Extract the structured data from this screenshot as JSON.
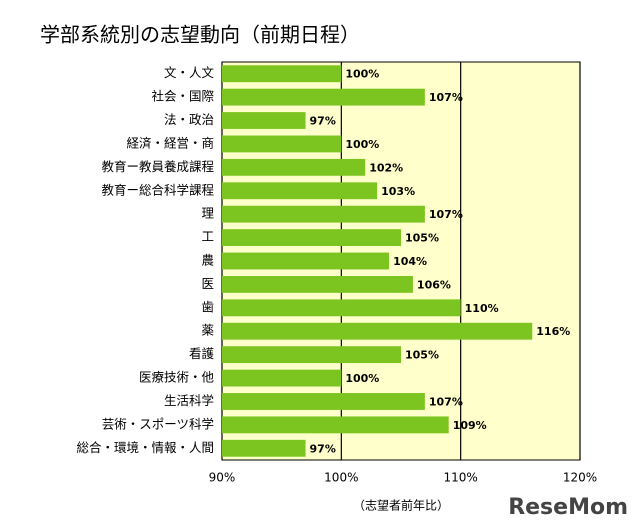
{
  "chart_data": {
    "type": "bar",
    "orientation": "horizontal",
    "title": "学部系統別の志望動向（前期日程）",
    "x_label": "（志望者前年比）",
    "watermark": "ReseMom",
    "categories": [
      "文・人文",
      "社会・国際",
      "法・政治",
      "経済・経営・商",
      "教育ー教員養成課程",
      "教育ー総合科学課程",
      "理",
      "工",
      "農",
      "医",
      "歯",
      "薬",
      "看護",
      "医療技術・他",
      "生活科学",
      "芸術・スポーツ科学",
      "総合・環境・情報・人間"
    ],
    "values": [
      100,
      107,
      97,
      100,
      102,
      103,
      107,
      105,
      104,
      106,
      110,
      116,
      105,
      100,
      107,
      109,
      97
    ],
    "value_labels": [
      "100%",
      "107%",
      "97%",
      "100%",
      "102%",
      "103%",
      "107%",
      "105%",
      "104%",
      "106%",
      "110%",
      "116%",
      "105%",
      "100%",
      "107%",
      "109%",
      "97%"
    ],
    "color": "#7cc520",
    "xlim": [
      90,
      120
    ],
    "xticks": [
      {
        "value": 90,
        "label": "90%"
      },
      {
        "value": 100,
        "label": "100%"
      },
      {
        "value": 110,
        "label": "110%"
      },
      {
        "value": 120,
        "label": "120%"
      }
    ],
    "grid": true
  }
}
